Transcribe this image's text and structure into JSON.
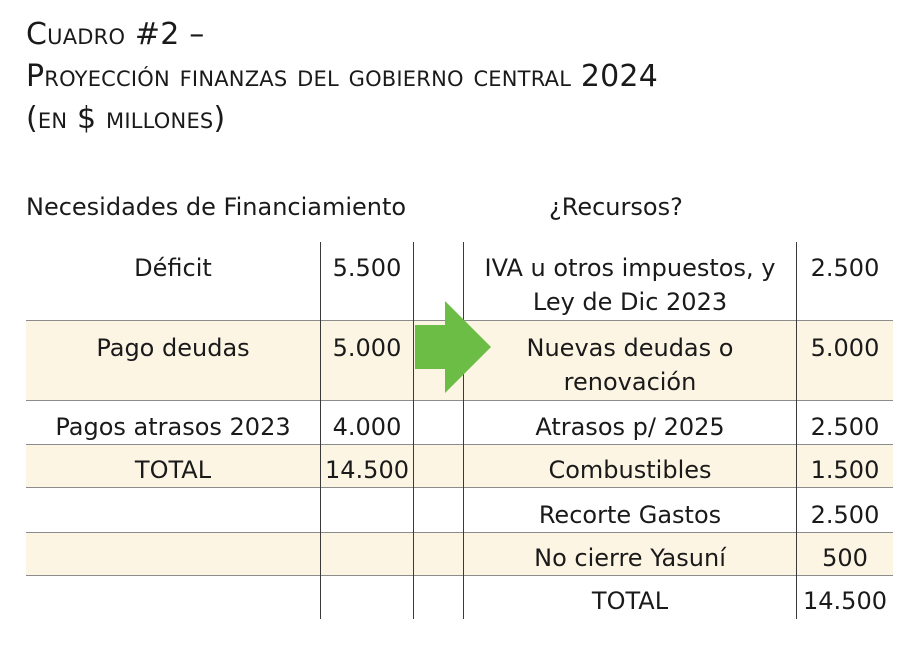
{
  "title": {
    "line1": "Cuadro #2 –",
    "line2": "Proyección finanzas del gobierno central 2024",
    "line3": "(en $ millones)"
  },
  "left_heading": "Necesidades de Financiamiento",
  "right_heading": "¿Recursos?",
  "needs": [
    {
      "label": "Déficit",
      "value": "5.500"
    },
    {
      "label": "Pago deudas",
      "value": "5.000"
    },
    {
      "label": "Pagos atrasos 2023",
      "value": "4.000"
    },
    {
      "label": "TOTAL",
      "value": "14.500"
    }
  ],
  "resources": [
    {
      "label_line1": "IVA u otros impuestos, y",
      "label_line2": "Ley de Dic 2023",
      "value": "2.500"
    },
    {
      "label_line1": "Nuevas deudas o",
      "label_line2": "renovación",
      "value": "5.000"
    },
    {
      "label_line1": "Atrasos p/ 2025",
      "value": "2.500"
    },
    {
      "label_line1": "Combustibles",
      "value": "1.500"
    },
    {
      "label_line1": "Recorte Gastos",
      "value": "2.500"
    },
    {
      "label_line1": "No cierre Yasuní",
      "value": "500"
    },
    {
      "label_line1": "TOTAL",
      "value": "14.500"
    }
  ],
  "colors": {
    "row_shade": "#fdf5e4",
    "arrow": "#6cbd45"
  },
  "icon": "right-arrow-icon"
}
